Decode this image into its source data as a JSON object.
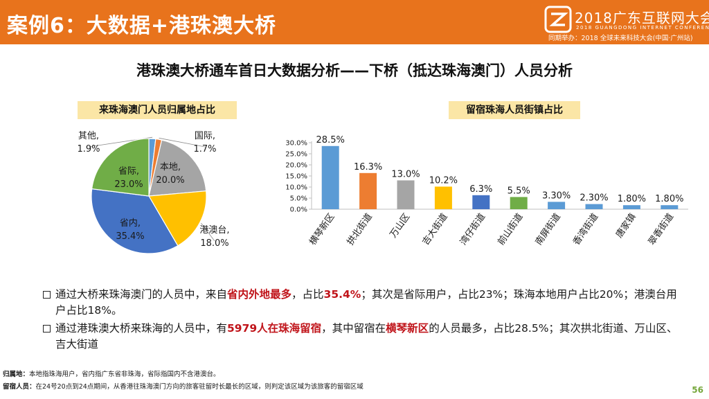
{
  "header": {
    "title": "案例6：大数据+港珠澳大桥",
    "logo_main": "2018广东互联网大会",
    "logo_sub": "2018 GUANGDONG INTERNET CONFERENCE",
    "logo_org": "同期举办：2018 全球未来科技大会(中国·广州站)",
    "bg_color": "#e8731c"
  },
  "main_title": "港珠澳大桥通车首日大数据分析——下桥（抵达珠海澳门）人员分析",
  "left_badge": "来珠海澳门人员归属地占比",
  "right_badge": "留宿珠海人员街镇占比",
  "chart_data": [
    {
      "type": "pie",
      "title": "来珠海澳门人员归属地占比",
      "slices": [
        {
          "label": "其他,",
          "pct": "1.9%",
          "value": 1.9,
          "color": "#5b9bd5"
        },
        {
          "label": "国际,",
          "pct": "1.7%",
          "value": 1.7,
          "color": "#ed7d31"
        },
        {
          "label": "本地,",
          "pct": "20.0%",
          "value": 20.0,
          "color": "#a5a5a5"
        },
        {
          "label": "港澳台,",
          "pct": "18.0%",
          "value": 18.0,
          "color": "#ffc000"
        },
        {
          "label": "省内,",
          "pct": "35.4%",
          "value": 35.4,
          "color": "#4472c4"
        },
        {
          "label": "省际,",
          "pct": "23.0%",
          "value": 23.0,
          "color": "#70ad47"
        }
      ]
    },
    {
      "type": "bar",
      "title": "留宿珠海人员街镇占比",
      "categories": [
        "横琴新区",
        "拱北街道",
        "万山区",
        "吉大街道",
        "湾仔街道",
        "前山街道",
        "南屏街道",
        "香湾街道",
        "唐家镇",
        "翠香街道"
      ],
      "values": [
        28.5,
        16.3,
        13.0,
        10.2,
        6.3,
        5.5,
        3.3,
        2.3,
        1.8,
        1.8
      ],
      "value_labels": [
        "28.5%",
        "16.3%",
        "13.0%",
        "10.2%",
        "6.3%",
        "5.5%",
        "3.30%",
        "2.30%",
        "1.80%",
        "1.80%"
      ],
      "colors": [
        "#5b9bd5",
        "#ed7d31",
        "#a5a5a5",
        "#ffc000",
        "#4472c4",
        "#70ad47",
        "#5b9bd5",
        "#5b9bd5",
        "#5b9bd5",
        "#5b9bd5"
      ],
      "ylim": [
        0,
        30
      ],
      "yticks": [
        0,
        5,
        10,
        15,
        20,
        25,
        30
      ],
      "ytick_labels": [
        "0.0%",
        "5.0%",
        "10.0%",
        "15.0%",
        "20.0%",
        "25.0%",
        "30.0%"
      ],
      "grid": false
    }
  ],
  "bullets": {
    "b1": {
      "t1": "通过大桥来珠海澳门的人员中，来自",
      "h1": "省内外地最多",
      "t2": "，占比",
      "h2": "35.4%",
      "t3": "；其次是省际用户，占比23%；珠海本地用户占比20%；港澳台用户占比18%。"
    },
    "b2": {
      "t1": "通过港珠澳大桥来珠海的人员中，有",
      "h1": "5979人在珠海留宿",
      "t2": "，其中留宿在",
      "h2": "横琴新区",
      "t3": "的人员最多，占比28.5%；其次拱北街道、万山区、吉大街道"
    }
  },
  "notes": {
    "n1_key": "归属地：",
    "n1_text": "本地指珠海用户，省内指广东省非珠海，省际指国内不含港澳台。",
    "n2_key": "留宿人员：",
    "n2_text": "在24号20点到24点期间，从香港往珠海澳门方向的旅客驻留时长最长的区域，则判定该区域为该旅客的留宿区域"
  },
  "page_number": "56"
}
